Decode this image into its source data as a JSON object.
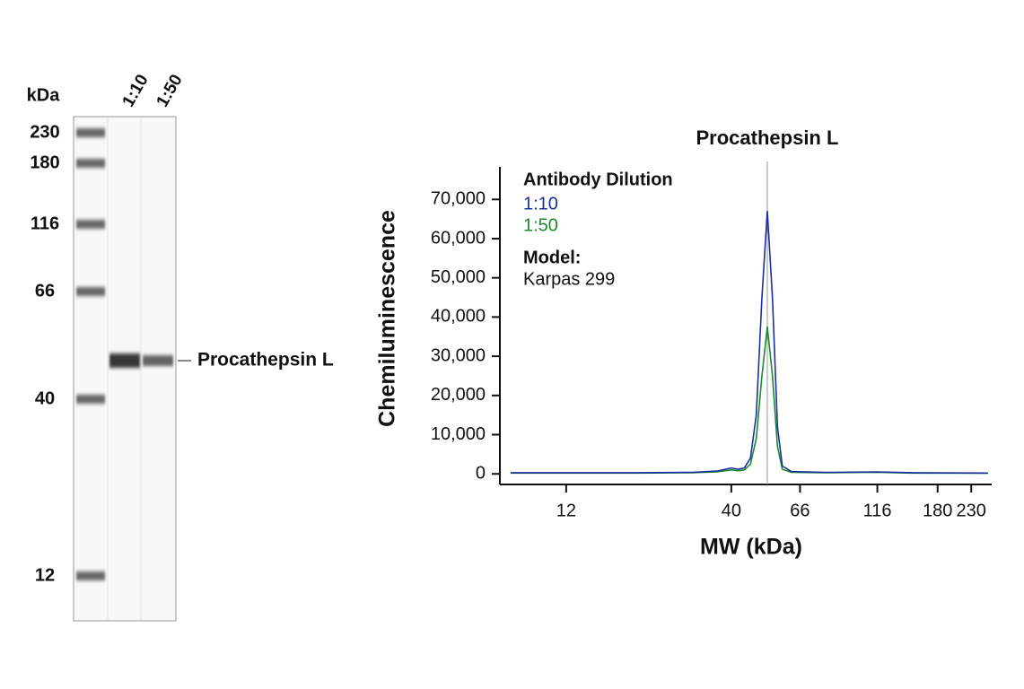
{
  "blot": {
    "unit": "kDa",
    "markers": [
      230,
      180,
      116,
      66,
      40,
      12
    ],
    "lanes": [
      "1:10",
      "1:50"
    ],
    "band_label": "Procathepsin L"
  },
  "chart_data": {
    "type": "line",
    "title": "Procathepsin L",
    "title_x": 52,
    "xlabel": "MW (kDa)",
    "ylabel": "Chemiluminescence",
    "legend_title": "Antibody Dilution",
    "model_label": "Model:",
    "model": "Karpas 299",
    "x": [
      8,
      20,
      30,
      36,
      40,
      42,
      44,
      46,
      48,
      50,
      52,
      54,
      56,
      58,
      62,
      80,
      116,
      150,
      260
    ],
    "series": [
      {
        "name": "1:10",
        "color": "#1c2fa0",
        "values": [
          300,
          300,
          400,
          700,
          1500,
          1200,
          1500,
          4000,
          15000,
          45000,
          67000,
          45000,
          12000,
          2000,
          600,
          400,
          500,
          300,
          200
        ]
      },
      {
        "name": "1:50",
        "color": "#1a8a2e",
        "values": [
          200,
          200,
          300,
          500,
          1000,
          800,
          1000,
          2500,
          9000,
          25000,
          37500,
          25000,
          7000,
          1200,
          400,
          300,
          400,
          200,
          150
        ]
      }
    ],
    "xscale": "log",
    "xlim": [
      7.4,
      267
    ],
    "xticks": [
      12,
      40,
      66,
      116,
      180,
      230
    ],
    "ylim": [
      -2700,
      78300
    ],
    "yticks": [
      {
        "value": 0,
        "label": "0"
      },
      {
        "value": 10000,
        "label": "10,000"
      },
      {
        "value": 20000,
        "label": "20,000"
      },
      {
        "value": 30000,
        "label": "30,000"
      },
      {
        "value": 40000,
        "label": "40,000"
      },
      {
        "value": 50000,
        "label": "50,000"
      },
      {
        "value": 60000,
        "label": "60,000"
      },
      {
        "value": 70000,
        "label": "70,000"
      }
    ]
  }
}
